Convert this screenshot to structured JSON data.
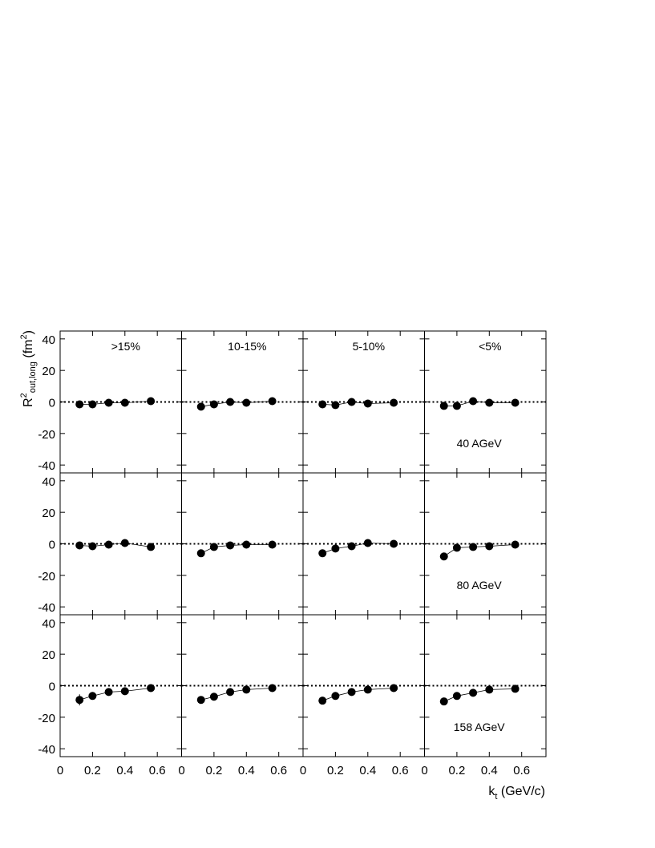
{
  "chart_data": {
    "type": "scatter",
    "ylabel": "R",
    "ylabel_sup": "2",
    "ylabel_sub": "out,long",
    "ylabel_unit_open": " (fm",
    "ylabel_unit_sup": "2",
    "ylabel_unit_close": ")",
    "xlabel": "k",
    "xlabel_sub": "t",
    "xlabel_unit": " (GeV/c)",
    "xlim": [
      0,
      0.75
    ],
    "ylim": [
      -45,
      45
    ],
    "xticks": [
      "0",
      "0.2",
      "0.4",
      "0.6"
    ],
    "xtick_values": [
      0,
      0.2,
      0.4,
      0.6
    ],
    "yticks": [
      "40",
      "20",
      "0",
      "-20",
      "-40"
    ],
    "ytick_values": [
      40,
      20,
      0,
      -20,
      -40
    ],
    "reference_line": 0,
    "centralities": [
      ">15%",
      "10-15%",
      "5-10%",
      "<5%"
    ],
    "energies": [
      "40 AGeV",
      "80 AGeV",
      "158 AGeV"
    ],
    "x": [
      0.12,
      0.2,
      0.3,
      0.4,
      0.56
    ],
    "panels": [
      [
        {
          "values": [
            -1.5,
            -1.5,
            -0.5,
            -0.5,
            0.5
          ],
          "errors": [
            1.5,
            1.2,
            1,
            1,
            1
          ]
        },
        {
          "values": [
            -3,
            -1.5,
            0,
            -0.5,
            0.5
          ],
          "errors": [
            1.5,
            1.2,
            1,
            1,
            1
          ]
        },
        {
          "values": [
            -1.5,
            -2,
            0,
            -1,
            -0.5
          ],
          "errors": [
            1.5,
            1.2,
            1,
            1,
            1
          ]
        },
        {
          "values": [
            -2.5,
            -2.5,
            0.5,
            -0.5,
            -0.5
          ],
          "errors": [
            1.5,
            1.2,
            1,
            1,
            1
          ]
        }
      ],
      [
        {
          "values": [
            -1,
            -1.5,
            -0.5,
            0.5,
            -2
          ],
          "errors": [
            1.5,
            1.2,
            1,
            1,
            1
          ]
        },
        {
          "values": [
            -6,
            -2,
            -1,
            -0.5,
            -0.5
          ],
          "errors": [
            1.5,
            1.2,
            1,
            1,
            1
          ]
        },
        {
          "values": [
            -6,
            -3,
            -1.5,
            0.5,
            0
          ],
          "errors": [
            1.5,
            1.2,
            1,
            1,
            1
          ]
        },
        {
          "values": [
            -8,
            -2.5,
            -2,
            -1.5,
            -0.5
          ],
          "errors": [
            1.5,
            1.2,
            1,
            1,
            1
          ]
        }
      ],
      [
        {
          "values": [
            -9,
            -6.5,
            -4,
            -3.5,
            -1.5
          ],
          "errors": [
            3.5,
            1.5,
            1,
            1,
            1
          ]
        },
        {
          "values": [
            -9,
            -7,
            -4,
            -2.5,
            -1.5
          ],
          "errors": [
            1.5,
            1.2,
            1,
            1,
            1
          ]
        },
        {
          "values": [
            -9.5,
            -6.5,
            -4,
            -2.5,
            -1.5
          ],
          "errors": [
            1.5,
            1.2,
            1,
            1,
            1
          ]
        },
        {
          "values": [
            -10,
            -6.5,
            -4.5,
            -2.5,
            -2
          ],
          "errors": [
            1.5,
            1.2,
            1,
            1,
            1
          ]
        }
      ]
    ]
  }
}
